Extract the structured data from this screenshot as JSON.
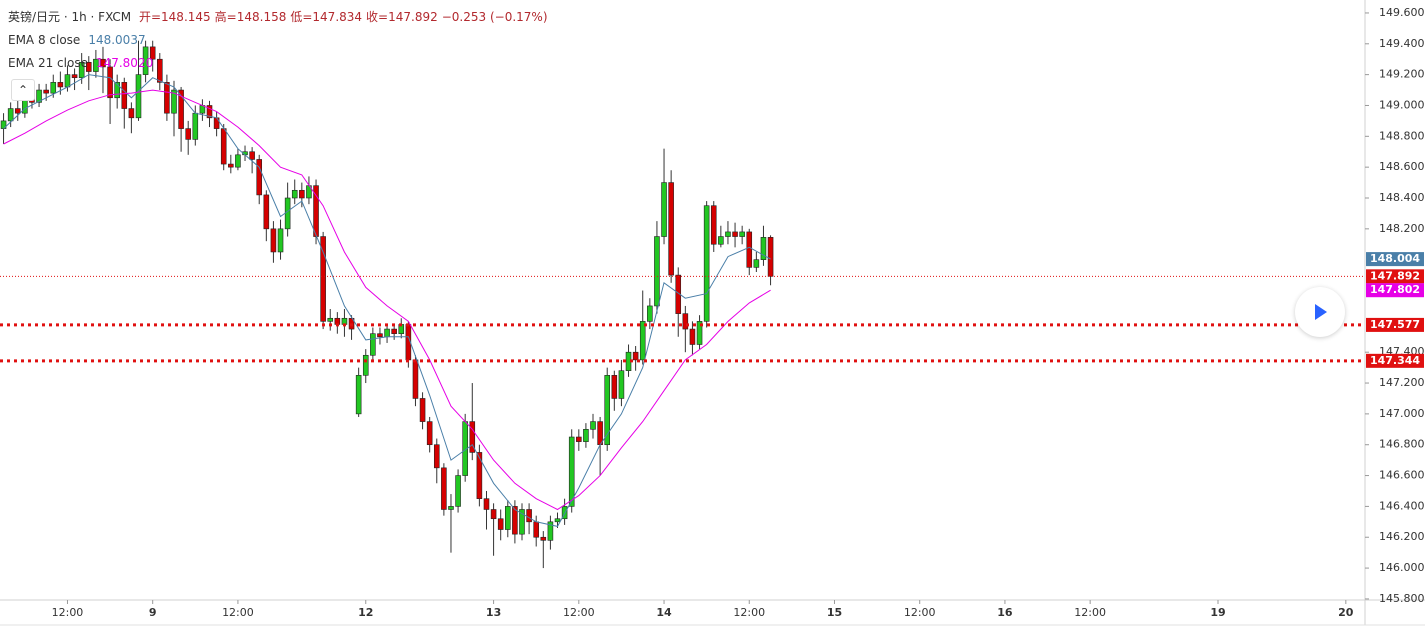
{
  "chart_data": {
    "type": "candlestick",
    "header": {
      "symbol": "英镑/日元 · 1h · FXCM",
      "items": [
        "开=148.145",
        "高=148.158",
        "低=147.834",
        "收=147.892",
        "−0.253 (−0.17%)"
      ]
    },
    "up_color": "#22c722",
    "down_color": "#d50000",
    "wick_color": "#333333",
    "open": [
      148.85,
      148.9,
      148.98,
      148.95,
      149.05,
      149.02,
      149.1,
      149.08,
      149.15,
      149.12,
      149.2,
      149.18,
      149.28,
      149.22,
      149.3,
      149.25,
      149.05,
      149.15,
      148.98,
      148.92,
      149.2,
      149.38,
      149.3,
      149.15,
      148.95,
      149.1,
      148.85,
      148.78,
      148.95,
      149.0,
      148.92,
      148.85,
      148.62,
      148.6,
      148.68,
      148.7,
      148.65,
      148.42,
      148.2,
      148.05,
      148.2,
      148.4,
      148.45,
      148.4,
      148.48,
      148.15,
      147.6,
      147.62,
      147.58,
      147.62,
      147.0,
      147.25,
      147.38,
      147.52,
      147.5,
      147.55,
      147.52,
      147.58,
      147.35,
      147.1,
      146.95,
      146.8,
      146.65,
      146.38,
      146.4,
      146.6,
      146.95,
      146.75,
      146.45,
      146.38,
      146.32,
      146.25,
      146.4,
      146.22,
      146.38,
      146.3,
      146.2,
      146.18,
      146.3,
      146.32,
      146.4,
      146.85,
      146.82,
      146.9,
      146.95,
      146.8,
      147.25,
      147.1,
      147.28,
      147.4,
      147.35,
      147.6,
      147.7,
      148.15,
      148.5,
      147.9,
      147.65,
      147.55,
      147.45,
      147.6,
      148.35,
      148.1,
      148.15,
      148.18,
      148.15,
      148.18,
      147.95,
      148.0,
      148.145
    ],
    "high": [
      148.95,
      149.02,
      149.05,
      149.1,
      149.08,
      149.14,
      149.14,
      149.2,
      149.22,
      149.26,
      149.24,
      149.34,
      149.32,
      149.36,
      149.38,
      149.3,
      149.2,
      149.18,
      149.02,
      149.42,
      149.42,
      149.42,
      149.34,
      149.2,
      149.16,
      149.12,
      148.9,
      149.0,
      149.04,
      149.03,
      148.96,
      148.88,
      148.68,
      148.72,
      148.74,
      148.73,
      148.68,
      148.45,
      148.25,
      148.26,
      148.5,
      148.52,
      148.5,
      148.54,
      148.52,
      148.18,
      147.68,
      147.66,
      147.68,
      147.64,
      147.3,
      147.42,
      147.56,
      147.56,
      147.58,
      147.58,
      147.62,
      147.6,
      147.38,
      147.14,
      146.98,
      146.84,
      146.68,
      146.48,
      146.64,
      147.0,
      147.2,
      146.8,
      146.5,
      146.42,
      146.38,
      146.44,
      146.44,
      146.42,
      146.42,
      146.34,
      146.24,
      146.34,
      146.36,
      146.45,
      146.9,
      146.9,
      146.94,
      147.0,
      146.98,
      147.3,
      147.28,
      147.35,
      147.45,
      147.44,
      147.8,
      147.75,
      148.25,
      148.72,
      148.58,
      147.95,
      147.7,
      147.6,
      147.64,
      148.38,
      148.38,
      148.22,
      148.25,
      148.24,
      148.22,
      148.2,
      148.05,
      148.22,
      148.158
    ],
    "low": [
      148.75,
      148.86,
      148.9,
      148.92,
      148.98,
      148.99,
      149.03,
      149.05,
      149.07,
      149.09,
      149.1,
      149.14,
      149.1,
      149.18,
      149.08,
      148.88,
      148.98,
      148.85,
      148.82,
      148.9,
      149.15,
      149.22,
      149.1,
      148.9,
      148.8,
      148.7,
      148.68,
      148.74,
      148.9,
      148.86,
      148.8,
      148.58,
      148.56,
      148.58,
      148.64,
      148.56,
      148.36,
      148.12,
      147.98,
      148.0,
      148.15,
      148.36,
      148.34,
      148.36,
      148.1,
      147.55,
      147.54,
      147.52,
      147.5,
      147.48,
      146.98,
      147.2,
      147.35,
      147.45,
      147.46,
      147.48,
      147.49,
      147.3,
      147.05,
      146.9,
      146.75,
      146.55,
      146.34,
      146.1,
      146.36,
      146.56,
      146.7,
      146.4,
      146.25,
      146.08,
      146.18,
      146.2,
      146.16,
      146.18,
      146.22,
      146.14,
      146.0,
      146.12,
      146.26,
      146.28,
      146.36,
      146.76,
      146.78,
      146.84,
      146.6,
      146.76,
      147.02,
      147.05,
      147.24,
      147.28,
      147.32,
      147.55,
      147.65,
      148.1,
      147.85,
      147.5,
      147.4,
      147.38,
      147.42,
      147.56,
      148.05,
      148.08,
      148.1,
      148.08,
      148.1,
      147.9,
      147.92,
      147.96,
      147.834
    ],
    "close": [
      148.9,
      148.98,
      148.95,
      149.05,
      149.02,
      149.1,
      149.08,
      149.15,
      149.12,
      149.2,
      149.18,
      149.28,
      149.22,
      149.3,
      149.25,
      149.05,
      149.15,
      148.98,
      148.92,
      149.2,
      149.38,
      149.3,
      149.15,
      148.95,
      149.1,
      148.85,
      148.78,
      148.95,
      149.0,
      148.92,
      148.85,
      148.62,
      148.6,
      148.68,
      148.7,
      148.65,
      148.42,
      148.2,
      148.05,
      148.2,
      148.4,
      148.45,
      148.4,
      148.48,
      148.15,
      147.6,
      147.62,
      147.58,
      147.62,
      147.55,
      147.25,
      147.38,
      147.52,
      147.5,
      147.55,
      147.52,
      147.58,
      147.35,
      147.1,
      146.95,
      146.8,
      146.65,
      146.38,
      146.4,
      146.6,
      146.95,
      146.75,
      146.45,
      146.38,
      146.32,
      146.25,
      146.4,
      146.22,
      146.38,
      146.3,
      146.2,
      146.18,
      146.3,
      146.32,
      146.4,
      146.85,
      146.82,
      146.9,
      146.95,
      146.8,
      147.25,
      147.1,
      147.28,
      147.4,
      147.35,
      147.6,
      147.7,
      148.15,
      148.5,
      147.9,
      147.65,
      147.55,
      147.45,
      147.6,
      148.35,
      148.1,
      148.15,
      148.18,
      148.15,
      148.18,
      147.95,
      148.0,
      148.145,
      147.892
    ],
    "series": [
      {
        "name": "EMA 8 close",
        "legend_value": "148.0037",
        "price_label": "148.004",
        "color": "#4a7fa8",
        "x": [
          0,
          3,
          6,
          9,
          12,
          15,
          18,
          21,
          24,
          27,
          30,
          33,
          36,
          39,
          42,
          45,
          48,
          51,
          54,
          57,
          60,
          63,
          66,
          69,
          72,
          75,
          78,
          81,
          84,
          87,
          90,
          93,
          96,
          99,
          102,
          105,
          108
        ],
        "values": [
          148.85,
          148.98,
          149.05,
          149.12,
          149.2,
          149.18,
          149.05,
          149.18,
          149.12,
          148.95,
          148.92,
          148.72,
          148.6,
          148.28,
          148.38,
          148.05,
          147.7,
          147.48,
          147.5,
          147.5,
          147.12,
          146.7,
          146.8,
          146.55,
          146.38,
          146.3,
          146.27,
          146.52,
          146.8,
          147.0,
          147.3,
          147.85,
          147.75,
          147.78,
          148.02,
          148.08,
          148.0037
        ]
      },
      {
        "name": "EMA 21 close",
        "legend_value": "147.8020",
        "price_label": "147.802",
        "color": "#e600e6",
        "x": [
          0,
          3,
          6,
          9,
          12,
          15,
          18,
          21,
          24,
          27,
          30,
          33,
          36,
          39,
          42,
          45,
          48,
          51,
          54,
          57,
          60,
          63,
          66,
          69,
          72,
          75,
          78,
          81,
          84,
          87,
          90,
          93,
          96,
          99,
          102,
          105,
          108
        ],
        "values": [
          148.75,
          148.82,
          148.9,
          148.97,
          149.03,
          149.07,
          149.08,
          149.1,
          149.08,
          149.02,
          148.96,
          148.86,
          148.74,
          148.6,
          148.55,
          148.35,
          148.05,
          147.82,
          147.7,
          147.6,
          147.35,
          147.05,
          146.9,
          146.7,
          146.55,
          146.45,
          146.38,
          146.47,
          146.6,
          146.78,
          146.95,
          147.15,
          147.35,
          147.45,
          147.6,
          147.72,
          147.802
        ]
      }
    ],
    "hlines": [
      {
        "value": 147.892,
        "label": "147.892",
        "color": "#e01010",
        "width": 1
      },
      {
        "value": 147.577,
        "label": "147.577",
        "color": "#e01010",
        "width": 3
      },
      {
        "value": 147.344,
        "label": "147.344",
        "color": "#e01010",
        "width": 3
      }
    ],
    "ylim": [
      145.793,
      149.684
    ],
    "yticks": [
      {
        "value": 149.6,
        "label": "149.600"
      },
      {
        "value": 149.4,
        "label": "149.400"
      },
      {
        "value": 149.2,
        "label": "149.200"
      },
      {
        "value": 149.0,
        "label": "149.000"
      },
      {
        "value": 148.8,
        "label": "148.800"
      },
      {
        "value": 148.6,
        "label": "148.600"
      },
      {
        "value": 148.4,
        "label": "148.400"
      },
      {
        "value": 148.2,
        "label": "148.200"
      },
      {
        "value": 147.4,
        "label": "147.400"
      },
      {
        "value": 147.2,
        "label": "147.200"
      },
      {
        "value": 147.0,
        "label": "147.000"
      },
      {
        "value": 146.8,
        "label": "146.800"
      },
      {
        "value": 146.6,
        "label": "146.600"
      },
      {
        "value": 146.4,
        "label": "146.400"
      },
      {
        "value": 146.2,
        "label": "146.200"
      },
      {
        "value": 146.0,
        "label": "146.000"
      },
      {
        "value": 145.8,
        "label": "145.800"
      }
    ],
    "xlim": [
      -0.5,
      191.7
    ],
    "xticks": [
      {
        "value": 9,
        "label": "12:00"
      },
      {
        "value": 21,
        "label": "9"
      },
      {
        "value": 33,
        "label": "12:00"
      },
      {
        "value": 51,
        "label": "12"
      },
      {
        "value": 69,
        "label": "13"
      },
      {
        "value": 81,
        "label": "12:00"
      },
      {
        "value": 93,
        "label": "14"
      },
      {
        "value": 105,
        "label": "12:00"
      },
      {
        "value": 117,
        "label": "15"
      },
      {
        "value": 129,
        "label": "12:00"
      },
      {
        "value": 141,
        "label": "16"
      },
      {
        "value": 153,
        "label": "12:00"
      },
      {
        "value": 171,
        "label": "19"
      },
      {
        "value": 189,
        "label": "20"
      }
    ]
  }
}
